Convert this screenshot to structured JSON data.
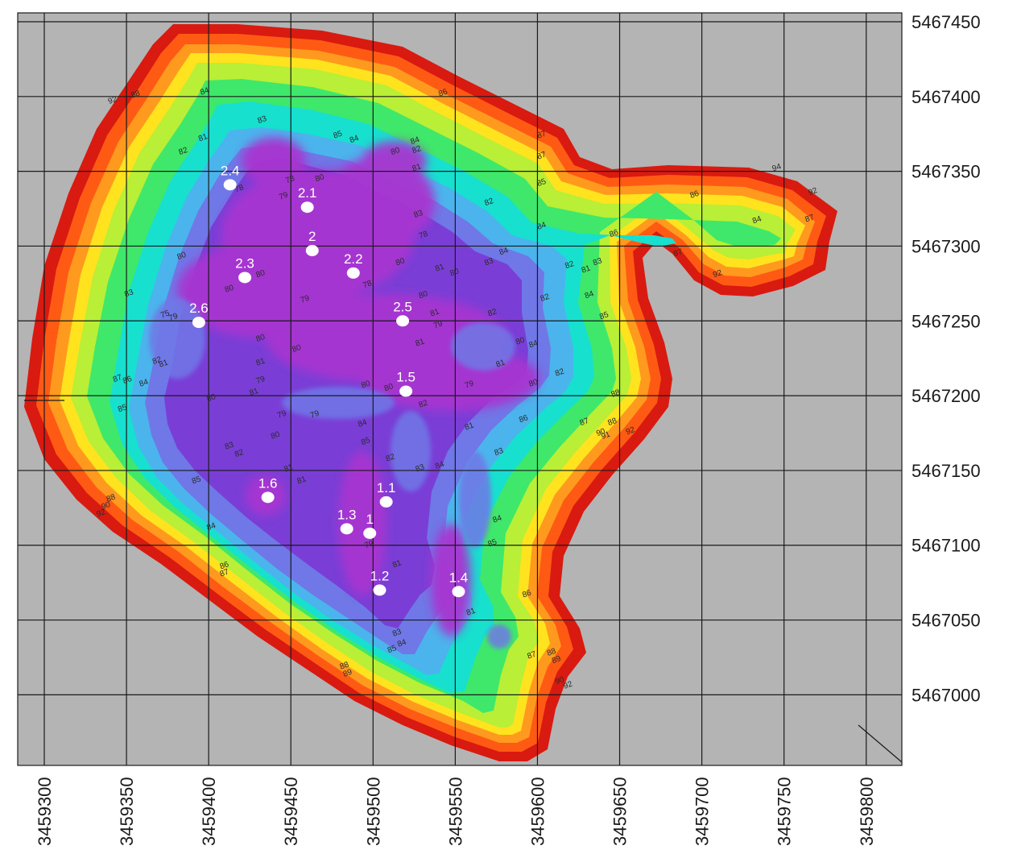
{
  "palette": {
    "background": "#b4b4b4",
    "grid": "#1a1a1a",
    "bands": [
      "#d91a10",
      "#ff5a14",
      "#ff9a1e",
      "#ffe31e",
      "#b9ef36",
      "#3fe86a",
      "#17e0cf",
      "#4bb4ec",
      "#6f78e6",
      "#7a3ed6",
      "#a836d0"
    ],
    "point": "#ffffff"
  },
  "axes": {
    "easting_labels": [
      "3459300",
      "3459350",
      "3459400",
      "3459450",
      "3459500",
      "3459550",
      "3459600",
      "3459650",
      "3459700",
      "3459750",
      "3459800"
    ],
    "northing_labels": [
      "5467450",
      "5467400",
      "5467350",
      "5467300",
      "5467250",
      "5467200",
      "5467150",
      "5467100",
      "5467050",
      "5467000"
    ]
  },
  "points": [
    {
      "label": "2.4",
      "x": 3459413,
      "y": 5467341
    },
    {
      "label": "2.1",
      "x": 3459460,
      "y": 5467326
    },
    {
      "label": "2",
      "x": 3459463,
      "y": 5467297
    },
    {
      "label": "2.2",
      "x": 3459488,
      "y": 5467282
    },
    {
      "label": "2.3",
      "x": 3459422,
      "y": 5467279
    },
    {
      "label": "2.6",
      "x": 3459394,
      "y": 5467249
    },
    {
      "label": "2.5",
      "x": 3459518,
      "y": 5467250
    },
    {
      "label": "1.5",
      "x": 3459520,
      "y": 5467203
    },
    {
      "label": "1.6",
      "x": 3459436,
      "y": 5467132
    },
    {
      "label": "1.1",
      "x": 3459508,
      "y": 5467129
    },
    {
      "label": "1.3",
      "x": 3459484,
      "y": 5467111
    },
    {
      "label": "1",
      "x": 3459498,
      "y": 5467108
    },
    {
      "label": "1.2",
      "x": 3459504,
      "y": 5467070
    },
    {
      "label": "1.4",
      "x": 3459552,
      "y": 5467069
    }
  ],
  "contour_labels": [
    {
      "text": "84",
      "x": 3459398,
      "y": 5467402
    },
    {
      "text": "92",
      "x": 3459342,
      "y": 5467396
    },
    {
      "text": "88",
      "x": 3459356,
      "y": 5467400
    },
    {
      "text": "86",
      "x": 3459543,
      "y": 5467401
    },
    {
      "text": "83",
      "x": 3459433,
      "y": 5467383
    },
    {
      "text": "85",
      "x": 3459479,
      "y": 5467373
    },
    {
      "text": "84",
      "x": 3459489,
      "y": 5467370
    },
    {
      "text": "84",
      "x": 3459526,
      "y": 5467369
    },
    {
      "text": "82",
      "x": 3459527,
      "y": 5467363
    },
    {
      "text": "80",
      "x": 3459514,
      "y": 5467362
    },
    {
      "text": "82",
      "x": 3459385,
      "y": 5467362
    },
    {
      "text": "81",
      "x": 3459397,
      "y": 5467371
    },
    {
      "text": "81",
      "x": 3459527,
      "y": 5467351
    },
    {
      "text": "80",
      "x": 3459468,
      "y": 5467344
    },
    {
      "text": "78",
      "x": 3459450,
      "y": 5467343
    },
    {
      "text": "79",
      "x": 3459446,
      "y": 5467332
    },
    {
      "text": "78",
      "x": 3459419,
      "y": 5467337
    },
    {
      "text": "83",
      "x": 3459528,
      "y": 5467320
    },
    {
      "text": "78",
      "x": 3459531,
      "y": 5467306
    },
    {
      "text": "82",
      "x": 3459571,
      "y": 5467328
    },
    {
      "text": "84",
      "x": 3459603,
      "y": 5467312
    },
    {
      "text": "85",
      "x": 3459603,
      "y": 5467341
    },
    {
      "text": "87",
      "x": 3459603,
      "y": 5467359
    },
    {
      "text": "86",
      "x": 3459696,
      "y": 5467333
    },
    {
      "text": "84",
      "x": 3459734,
      "y": 5467316
    },
    {
      "text": "86",
      "x": 3459647,
      "y": 5467307
    },
    {
      "text": "84",
      "x": 3459580,
      "y": 5467295
    },
    {
      "text": "83",
      "x": 3459571,
      "y": 5467288
    },
    {
      "text": "82",
      "x": 3459620,
      "y": 5467286
    },
    {
      "text": "81",
      "x": 3459630,
      "y": 5467283
    },
    {
      "text": "83",
      "x": 3459637,
      "y": 5467288
    },
    {
      "text": "81",
      "x": 3459541,
      "y": 5467284
    },
    {
      "text": "80",
      "x": 3459550,
      "y": 5467281
    },
    {
      "text": "80",
      "x": 3459517,
      "y": 5467288
    },
    {
      "text": "78",
      "x": 3459497,
      "y": 5467273
    },
    {
      "text": "80",
      "x": 3459432,
      "y": 5467280
    },
    {
      "text": "80",
      "x": 3459413,
      "y": 5467270
    },
    {
      "text": "80",
      "x": 3459384,
      "y": 5467292
    },
    {
      "text": "80",
      "x": 3459531,
      "y": 5467266
    },
    {
      "text": "82",
      "x": 3459605,
      "y": 5467264
    },
    {
      "text": "84",
      "x": 3459632,
      "y": 5467266
    },
    {
      "text": "85",
      "x": 3459641,
      "y": 5467252
    },
    {
      "text": "83",
      "x": 3459352,
      "y": 5467267
    },
    {
      "text": "75",
      "x": 3459374,
      "y": 5467253
    },
    {
      "text": "79",
      "x": 3459379,
      "y": 5467251
    },
    {
      "text": "79",
      "x": 3459459,
      "y": 5467263
    },
    {
      "text": "81",
      "x": 3459538,
      "y": 5467254
    },
    {
      "text": "82",
      "x": 3459573,
      "y": 5467254
    },
    {
      "text": "79",
      "x": 3459540,
      "y": 5467246
    },
    {
      "text": "80",
      "x": 3459432,
      "y": 5467237
    },
    {
      "text": "80",
      "x": 3459454,
      "y": 5467230
    },
    {
      "text": "81",
      "x": 3459529,
      "y": 5467234
    },
    {
      "text": "80",
      "x": 3459590,
      "y": 5467235
    },
    {
      "text": "84",
      "x": 3459598,
      "y": 5467233
    },
    {
      "text": "82",
      "x": 3459369,
      "y": 5467222
    },
    {
      "text": "81",
      "x": 3459373,
      "y": 5467220
    },
    {
      "text": "81",
      "x": 3459432,
      "y": 5467221
    },
    {
      "text": "81",
      "x": 3459578,
      "y": 5467220
    },
    {
      "text": "82",
      "x": 3459614,
      "y": 5467214
    },
    {
      "text": "87",
      "x": 3459345,
      "y": 5467210
    },
    {
      "text": "86",
      "x": 3459351,
      "y": 5467209
    },
    {
      "text": "84",
      "x": 3459361,
      "y": 5467207
    },
    {
      "text": "79",
      "x": 3459432,
      "y": 5467209
    },
    {
      "text": "81",
      "x": 3459428,
      "y": 5467201
    },
    {
      "text": "80",
      "x": 3459496,
      "y": 5467206
    },
    {
      "text": "80",
      "x": 3459510,
      "y": 5467204
    },
    {
      "text": "79",
      "x": 3459559,
      "y": 5467206
    },
    {
      "text": "80",
      "x": 3459598,
      "y": 5467207
    },
    {
      "text": "88",
      "x": 3459648,
      "y": 5467200
    },
    {
      "text": "80",
      "x": 3459402,
      "y": 5467197
    },
    {
      "text": "82",
      "x": 3459531,
      "y": 5467193
    },
    {
      "text": "85",
      "x": 3459348,
      "y": 5467190
    },
    {
      "text": "79",
      "x": 3459445,
      "y": 5467186
    },
    {
      "text": "79",
      "x": 3459465,
      "y": 5467186
    },
    {
      "text": "84",
      "x": 3459494,
      "y": 5467180
    },
    {
      "text": "81",
      "x": 3459559,
      "y": 5467178
    },
    {
      "text": "86",
      "x": 3459592,
      "y": 5467183
    },
    {
      "text": "87",
      "x": 3459629,
      "y": 5467181
    },
    {
      "text": "88",
      "x": 3459646,
      "y": 5467181
    },
    {
      "text": "90",
      "x": 3459639,
      "y": 5467174
    },
    {
      "text": "91",
      "x": 3459642,
      "y": 5467172
    },
    {
      "text": "92",
      "x": 3459657,
      "y": 5467175
    },
    {
      "text": "80",
      "x": 3459441,
      "y": 5467172
    },
    {
      "text": "85",
      "x": 3459496,
      "y": 5467168
    },
    {
      "text": "83",
      "x": 3459413,
      "y": 5467165
    },
    {
      "text": "82",
      "x": 3459419,
      "y": 5467160
    },
    {
      "text": "83",
      "x": 3459577,
      "y": 5467161
    },
    {
      "text": "82",
      "x": 3459511,
      "y": 5467157
    },
    {
      "text": "83",
      "x": 3459529,
      "y": 5467150
    },
    {
      "text": "84",
      "x": 3459541,
      "y": 5467152
    },
    {
      "text": "81",
      "x": 3459449,
      "y": 5467150
    },
    {
      "text": "81",
      "x": 3459457,
      "y": 5467142
    },
    {
      "text": "85",
      "x": 3459393,
      "y": 5467142
    },
    {
      "text": "84",
      "x": 3459576,
      "y": 5467116
    },
    {
      "text": "84",
      "x": 3459402,
      "y": 5467111
    },
    {
      "text": "88",
      "x": 3459341,
      "y": 5467130
    },
    {
      "text": "90",
      "x": 3459338,
      "y": 5467125
    },
    {
      "text": "92",
      "x": 3459335,
      "y": 5467120
    },
    {
      "text": "85",
      "x": 3459573,
      "y": 5467100
    },
    {
      "text": "79",
      "x": 3459498,
      "y": 5467099
    },
    {
      "text": "81",
      "x": 3459515,
      "y": 5467086
    },
    {
      "text": "86",
      "x": 3459410,
      "y": 5467085
    },
    {
      "text": "87",
      "x": 3459410,
      "y": 5467080
    },
    {
      "text": "86",
      "x": 3459594,
      "y": 5467066
    },
    {
      "text": "81",
      "x": 3459560,
      "y": 5467054
    },
    {
      "text": "83",
      "x": 3459515,
      "y": 5467040
    },
    {
      "text": "84",
      "x": 3459518,
      "y": 5467033
    },
    {
      "text": "85",
      "x": 3459512,
      "y": 5467029
    },
    {
      "text": "87",
      "x": 3459597,
      "y": 5467025
    },
    {
      "text": "88",
      "x": 3459609,
      "y": 5467027
    },
    {
      "text": "89",
      "x": 3459612,
      "y": 5467022
    },
    {
      "text": "88",
      "x": 3459483,
      "y": 5467018
    },
    {
      "text": "89",
      "x": 3459485,
      "y": 5467013
    },
    {
      "text": "90",
      "x": 3459614,
      "y": 5467008
    },
    {
      "text": "92",
      "x": 3459619,
      "y": 5467005
    },
    {
      "text": "87",
      "x": 3459686,
      "y": 5467294
    },
    {
      "text": "92",
      "x": 3459710,
      "y": 5467280
    },
    {
      "text": "92",
      "x": 3459768,
      "y": 5467335
    },
    {
      "text": "87",
      "x": 3459766,
      "y": 5467317
    },
    {
      "text": "94",
      "x": 3459746,
      "y": 5467351
    },
    {
      "text": "87",
      "x": 3459603,
      "y": 5467373
    }
  ]
}
